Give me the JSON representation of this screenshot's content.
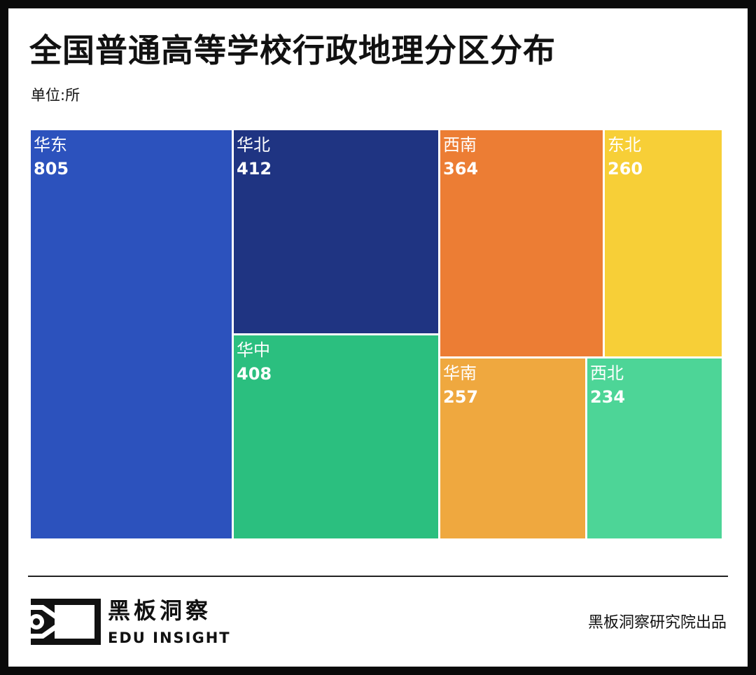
{
  "title": "全国普通高等学校行政地理分区分布",
  "unit": "单位:所",
  "chart_data": {
    "type": "treemap",
    "title": "全国普通高等学校行政地理分区分布",
    "unit": "单位:所",
    "items": [
      {
        "name": "华东",
        "value": 805,
        "color": "#2c52bd"
      },
      {
        "name": "华北",
        "value": 412,
        "color": "#1f3482"
      },
      {
        "name": "华中",
        "value": 408,
        "color": "#2bbf7f"
      },
      {
        "name": "西南",
        "value": 364,
        "color": "#ec7d34"
      },
      {
        "name": "东北",
        "value": 260,
        "color": "#f7cf37"
      },
      {
        "name": "华南",
        "value": 257,
        "color": "#efa83f"
      },
      {
        "name": "西北",
        "value": 234,
        "color": "#4dd597"
      }
    ]
  },
  "footer": {
    "brand_cn": "黑板洞察",
    "brand_en": "EDU INSIGHT",
    "credit": "黑板洞察研究院出品"
  }
}
